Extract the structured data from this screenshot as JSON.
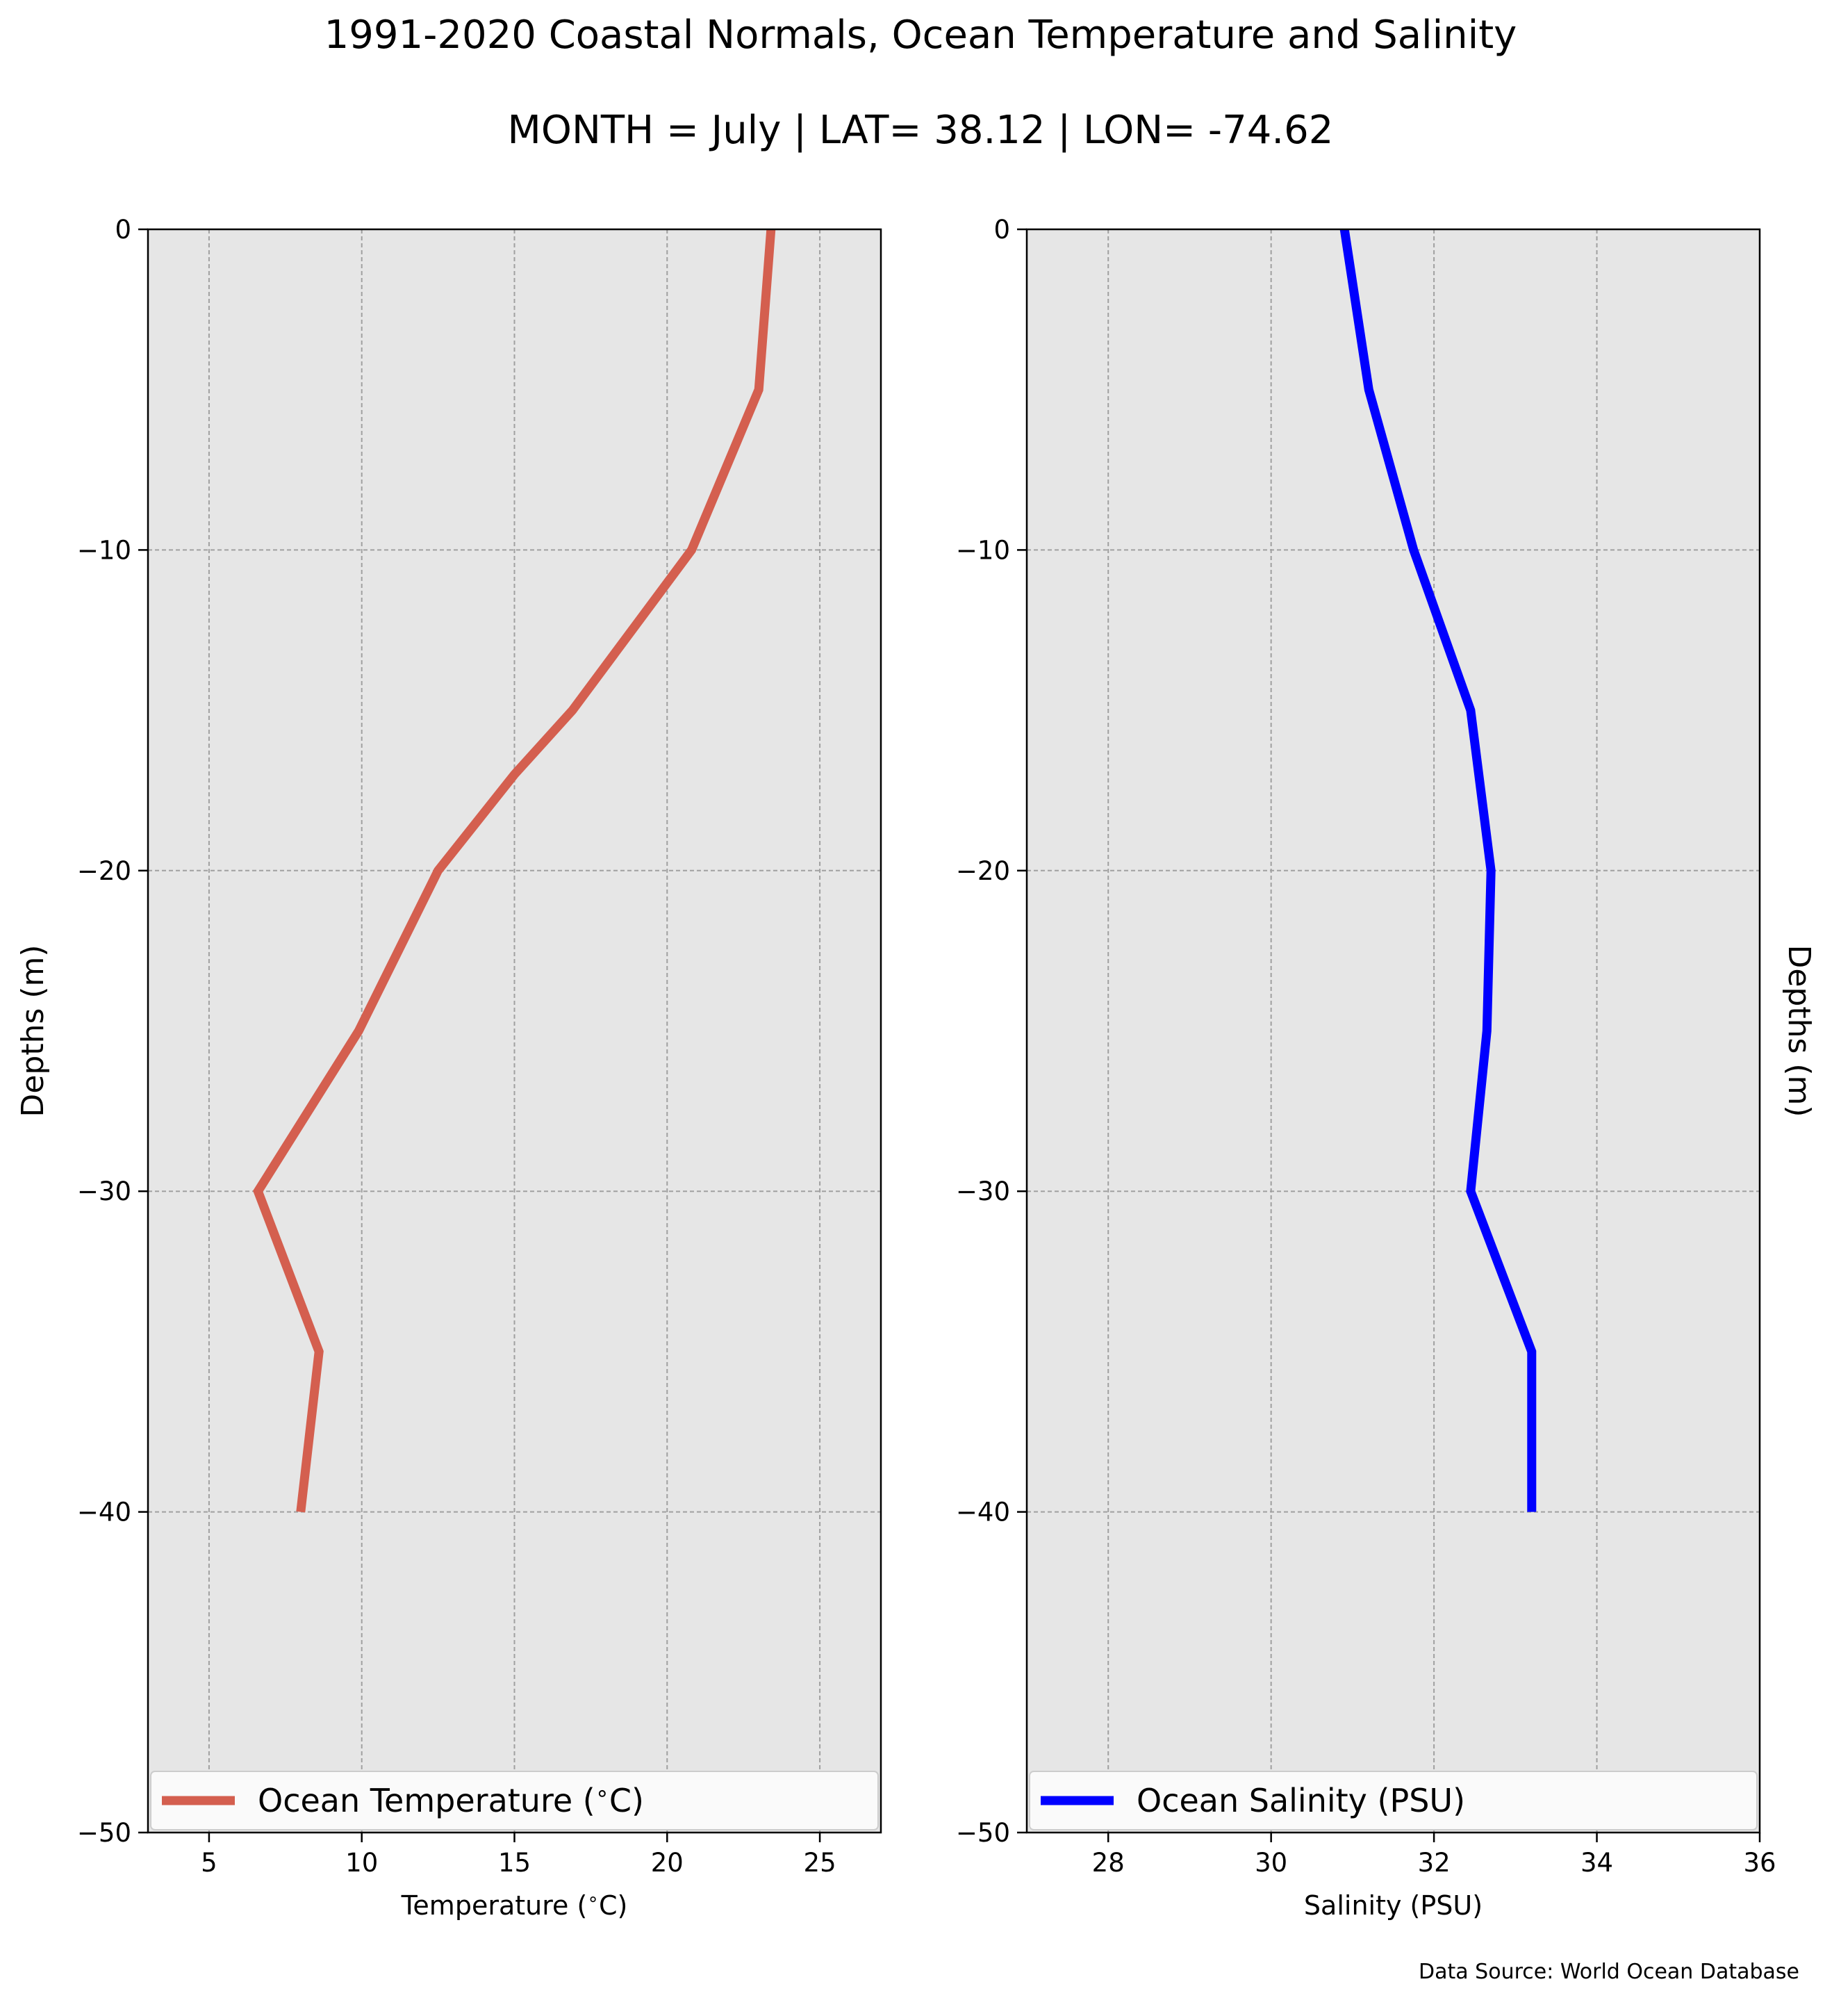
{
  "figure": {
    "title": "1991-2020 Coastal Normals, Ocean Temperature and Salinity",
    "subtitle": "MONTH = July | LAT= 38.12 | LON= -74.62",
    "source": "Data Source: World Ocean Database"
  },
  "colors": {
    "panel_bg": "#e6e6e6",
    "grid": "#a0a0a0",
    "temperature_line": "#d45f4f",
    "salinity_line": "#0000ff"
  },
  "chart_data": [
    {
      "type": "line",
      "orientation": "vertical-profile",
      "xlabel": "Temperature ($^\\circ$C)",
      "ylabel": "Depths (m)",
      "ylabel_side": "left",
      "xlim": [
        3,
        27
      ],
      "ylim": [
        -50,
        0
      ],
      "xticks": [
        5,
        10,
        15,
        20,
        25
      ],
      "yticks": [
        0,
        -10,
        -20,
        -30,
        -40,
        -50
      ],
      "grid": true,
      "legend_position": "bottom",
      "series": [
        {
          "name": "Ocean Temperature ($^\\circ$C)",
          "color": "#d45f4f",
          "x": [
            23.4,
            23.0,
            20.8,
            16.9,
            15.0,
            12.5,
            9.9,
            6.6,
            8.6,
            8.0
          ],
          "y": [
            0,
            -5,
            -10,
            -15,
            -17,
            -20,
            -25,
            -30,
            -35,
            -40
          ]
        }
      ]
    },
    {
      "type": "line",
      "orientation": "vertical-profile",
      "xlabel": "Salinity (PSU)",
      "ylabel": "Depths (m)",
      "ylabel_side": "right",
      "xlim": [
        27,
        36
      ],
      "ylim": [
        -50,
        0
      ],
      "xticks": [
        28,
        30,
        32,
        34,
        36
      ],
      "yticks": [
        0,
        -10,
        -20,
        -30,
        -40,
        -50
      ],
      "grid": true,
      "legend_position": "bottom",
      "series": [
        {
          "name": "Ocean Salinity (PSU)",
          "color": "#0000ff",
          "x": [
            30.9,
            31.2,
            31.75,
            32.45,
            32.7,
            32.65,
            32.45,
            33.2,
            33.2
          ],
          "y": [
            0,
            -5,
            -10,
            -15,
            -20,
            -25,
            -30,
            -35,
            -40
          ]
        }
      ]
    }
  ]
}
